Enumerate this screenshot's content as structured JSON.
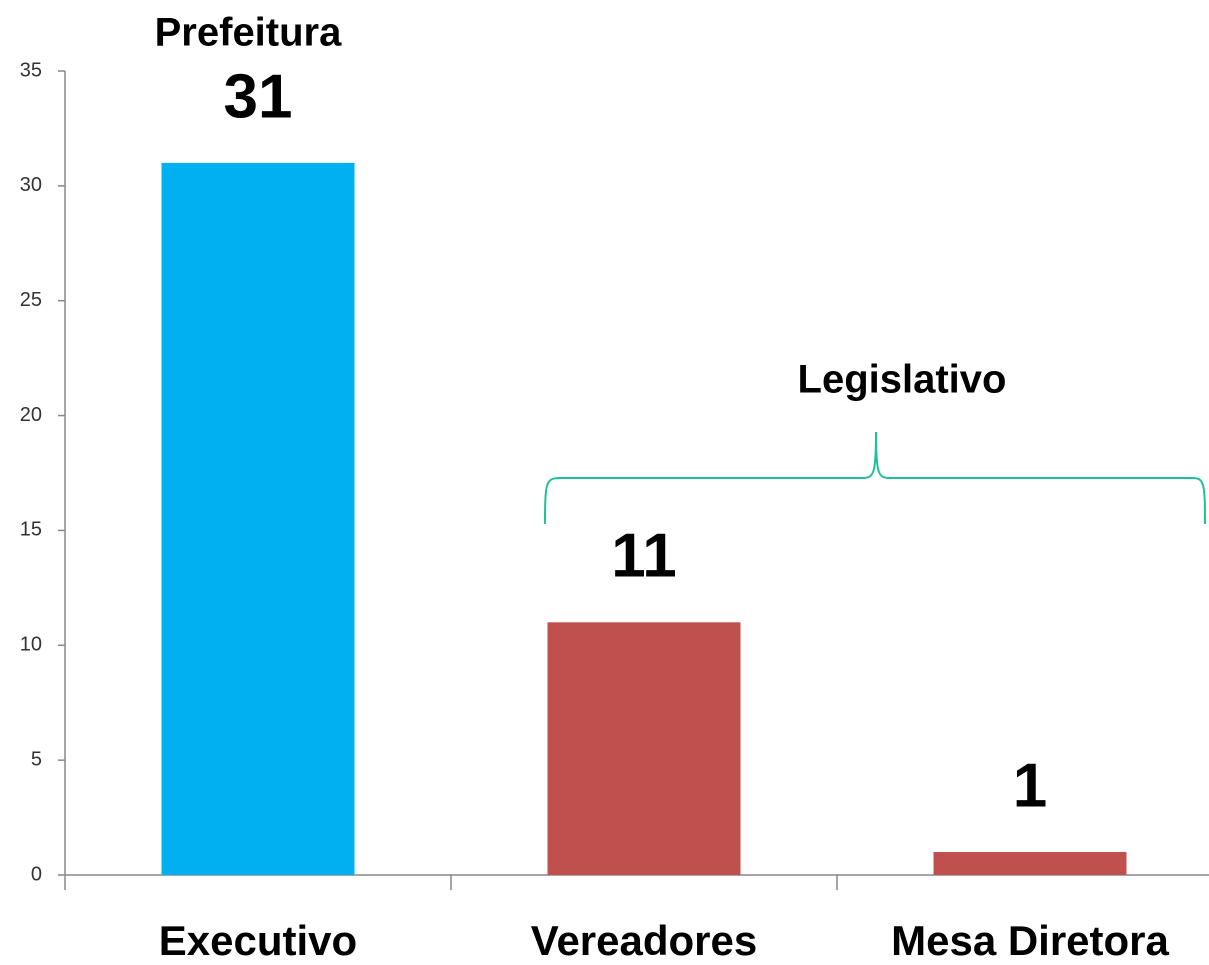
{
  "chart_data": {
    "type": "bar",
    "categories": [
      "Executivo",
      "Vereadores",
      "Mesa Diretora"
    ],
    "values": [
      31,
      11,
      1
    ],
    "colors": [
      "#00b0f0",
      "#c0504d",
      "#c0504d"
    ],
    "ylim": [
      0,
      35
    ],
    "yticks": [
      0,
      5,
      10,
      15,
      20,
      25,
      30,
      35
    ],
    "annotations": [
      "Prefeitura",
      "Legislativo"
    ]
  }
}
